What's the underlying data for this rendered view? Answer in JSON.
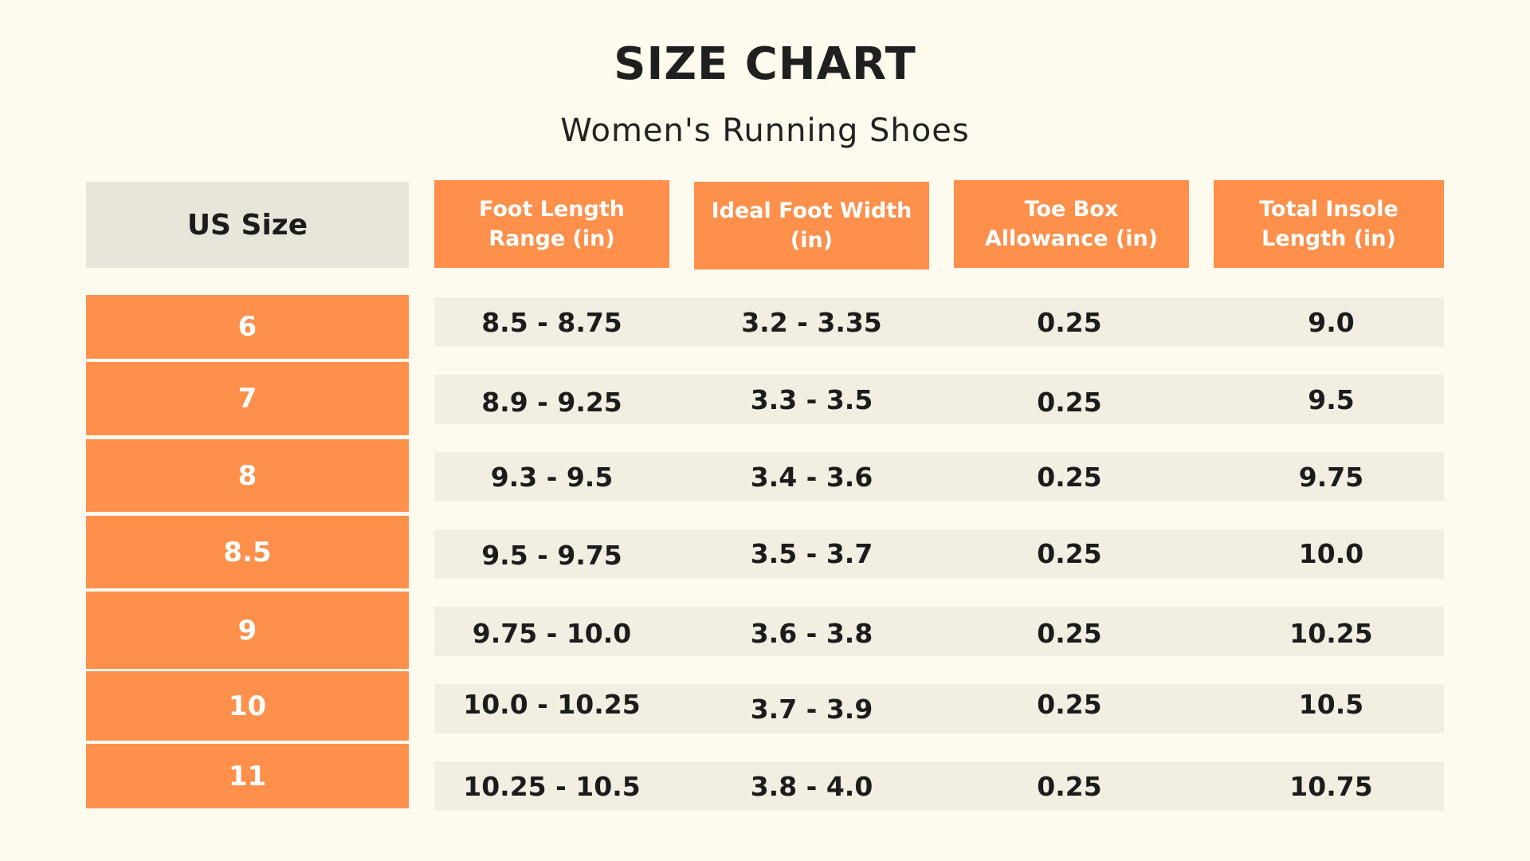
{
  "title": "SIZE CHART",
  "subtitle": "Women's Running Shoes",
  "accent_color": "#fe904c",
  "row_band_color": "#f2eee2",
  "header_neutral_color": "#e8e6da",
  "background_color": "#fefaed",
  "headers": {
    "us_size": "US Size",
    "foot_length": "Foot Length Range (in)",
    "foot_width": "Ideal Foot Width (in)",
    "toe_box": "Toe Box Allowance (in)",
    "insole": "Total Insole Length (in)"
  },
  "rows": [
    {
      "size": "6",
      "foot_length": "8.5 - 8.75",
      "foot_width": "3.2 - 3.35",
      "toe_box": "0.25",
      "insole": "9.0"
    },
    {
      "size": "7",
      "foot_length": "8.9 - 9.25",
      "foot_width": "3.3 - 3.5",
      "toe_box": "0.25",
      "insole": "9.5"
    },
    {
      "size": "8",
      "foot_length": "9.3 - 9.5",
      "foot_width": "3.4 - 3.6",
      "toe_box": "0.25",
      "insole": "9.75"
    },
    {
      "size": "8.5",
      "foot_length": "9.5 - 9.75",
      "foot_width": "3.5 - 3.7",
      "toe_box": "0.25",
      "insole": "10.0"
    },
    {
      "size": "9",
      "foot_length": "9.75 - 10.0",
      "foot_width": "3.6 - 3.8",
      "toe_box": "0.25",
      "insole": "10.25"
    },
    {
      "size": "10",
      "foot_length": "10.0 - 10.25",
      "foot_width": "3.7 - 3.9",
      "toe_box": "0.25",
      "insole": "10.5"
    },
    {
      "size": "11",
      "foot_length": "10.25 - 10.5",
      "foot_width": "3.8 - 4.0",
      "toe_box": "0.25",
      "insole": "10.75"
    }
  ]
}
